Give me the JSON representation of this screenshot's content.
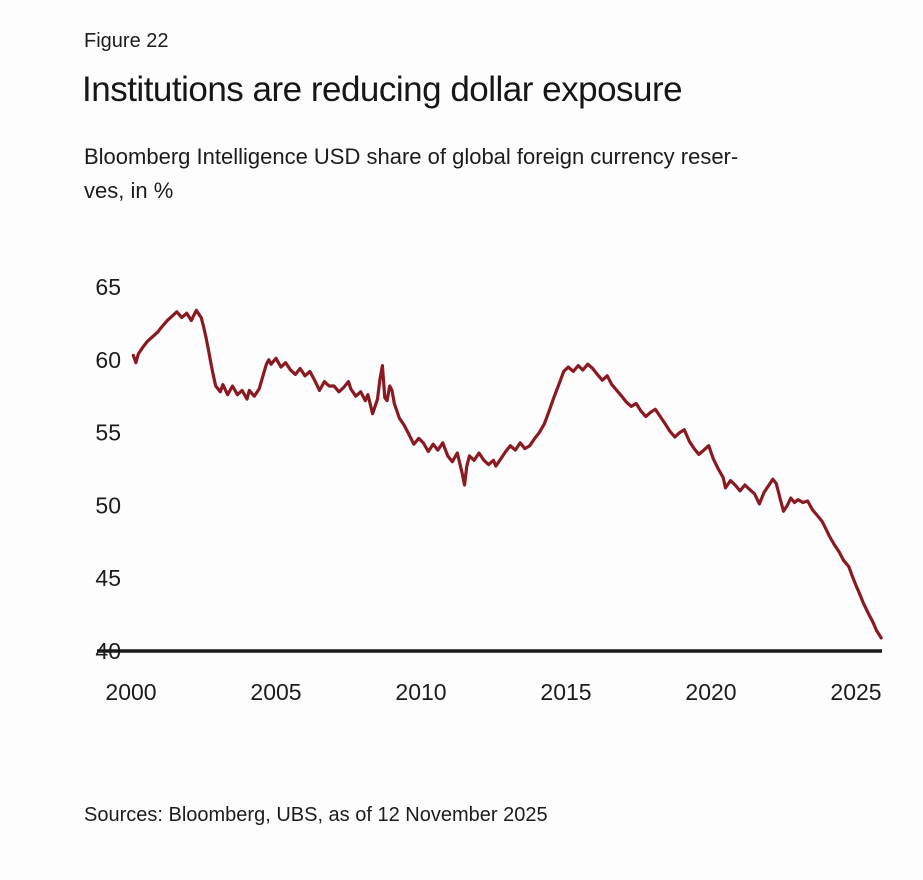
{
  "figure": {
    "label": "Figure 22",
    "title": "Institutions are reducing dollar exposure",
    "subtitle_line1": "Bloomberg Intelligence USD share of global foreign currency reser-",
    "subtitle_line2": "ves, in %",
    "sources": "Sources: Bloomberg, UBS, as of 12 November 2025"
  },
  "colors": {
    "line": "#8a1a22",
    "axis": "#1a1a1a",
    "text": "#1c1c1c",
    "background": "#fdfdfd"
  },
  "chart_data": {
    "type": "line",
    "title": "Institutions are reducing dollar exposure",
    "subtitle": "Bloomberg Intelligence USD share of global foreign currency reserves, in %",
    "xlabel": "",
    "ylabel": "USD share of global foreign currency reserves, %",
    "xlim": [
      1999.9,
      2026.3
    ],
    "ylim": [
      40,
      65
    ],
    "x_ticks": [
      2000,
      2005,
      2010,
      2015,
      2020,
      2025
    ],
    "y_ticks": [
      65,
      60,
      55,
      50,
      45,
      40
    ],
    "grid": false,
    "legend": false,
    "line_color": "#8a1a22",
    "series": [
      {
        "name": "USD share of global FX reserves (%)",
        "points": [
          [
            2000.08,
            60.3
          ],
          [
            2000.17,
            59.8
          ],
          [
            2000.25,
            60.4
          ],
          [
            2000.42,
            60.9
          ],
          [
            2000.58,
            61.3
          ],
          [
            2000.75,
            61.6
          ],
          [
            2000.92,
            61.9
          ],
          [
            2001.08,
            62.3
          ],
          [
            2001.25,
            62.7
          ],
          [
            2001.42,
            63.0
          ],
          [
            2001.58,
            63.3
          ],
          [
            2001.75,
            62.9
          ],
          [
            2001.92,
            63.2
          ],
          [
            2002.08,
            62.7
          ],
          [
            2002.25,
            63.4
          ],
          [
            2002.42,
            62.9
          ],
          [
            2002.5,
            62.3
          ],
          [
            2002.58,
            61.6
          ],
          [
            2002.67,
            60.7
          ],
          [
            2002.75,
            59.8
          ],
          [
            2002.83,
            59.0
          ],
          [
            2002.92,
            58.2
          ],
          [
            2003.08,
            57.8
          ],
          [
            2003.17,
            58.3
          ],
          [
            2003.33,
            57.6
          ],
          [
            2003.5,
            58.2
          ],
          [
            2003.67,
            57.6
          ],
          [
            2003.83,
            57.9
          ],
          [
            2004.0,
            57.3
          ],
          [
            2004.08,
            57.9
          ],
          [
            2004.25,
            57.5
          ],
          [
            2004.42,
            58.0
          ],
          [
            2004.58,
            59.1
          ],
          [
            2004.67,
            59.7
          ],
          [
            2004.75,
            60.0
          ],
          [
            2004.83,
            59.7
          ],
          [
            2005.0,
            60.1
          ],
          [
            2005.17,
            59.5
          ],
          [
            2005.33,
            59.8
          ],
          [
            2005.5,
            59.3
          ],
          [
            2005.67,
            59.0
          ],
          [
            2005.83,
            59.4
          ],
          [
            2006.0,
            58.9
          ],
          [
            2006.17,
            59.2
          ],
          [
            2006.33,
            58.6
          ],
          [
            2006.5,
            57.9
          ],
          [
            2006.67,
            58.5
          ],
          [
            2006.83,
            58.2
          ],
          [
            2007.0,
            58.2
          ],
          [
            2007.17,
            57.8
          ],
          [
            2007.33,
            58.1
          ],
          [
            2007.5,
            58.5
          ],
          [
            2007.58,
            58.0
          ],
          [
            2007.75,
            57.5
          ],
          [
            2007.92,
            57.8
          ],
          [
            2008.08,
            57.2
          ],
          [
            2008.17,
            57.6
          ],
          [
            2008.33,
            56.3
          ],
          [
            2008.5,
            57.3
          ],
          [
            2008.58,
            58.6
          ],
          [
            2008.67,
            59.6
          ],
          [
            2008.75,
            57.4
          ],
          [
            2008.83,
            57.2
          ],
          [
            2008.92,
            58.2
          ],
          [
            2009.0,
            57.9
          ],
          [
            2009.08,
            57.0
          ],
          [
            2009.25,
            56.0
          ],
          [
            2009.42,
            55.5
          ],
          [
            2009.58,
            54.9
          ],
          [
            2009.75,
            54.2
          ],
          [
            2009.92,
            54.6
          ],
          [
            2010.08,
            54.3
          ],
          [
            2010.25,
            53.7
          ],
          [
            2010.42,
            54.2
          ],
          [
            2010.58,
            53.8
          ],
          [
            2010.75,
            54.3
          ],
          [
            2010.92,
            53.4
          ],
          [
            2011.08,
            53.0
          ],
          [
            2011.25,
            53.6
          ],
          [
            2011.42,
            52.2
          ],
          [
            2011.5,
            51.4
          ],
          [
            2011.58,
            52.7
          ],
          [
            2011.67,
            53.4
          ],
          [
            2011.83,
            53.1
          ],
          [
            2012.0,
            53.6
          ],
          [
            2012.17,
            53.1
          ],
          [
            2012.33,
            52.8
          ],
          [
            2012.5,
            53.1
          ],
          [
            2012.58,
            52.7
          ],
          [
            2012.75,
            53.2
          ],
          [
            2012.92,
            53.7
          ],
          [
            2013.08,
            54.1
          ],
          [
            2013.25,
            53.8
          ],
          [
            2013.42,
            54.3
          ],
          [
            2013.58,
            53.9
          ],
          [
            2013.75,
            54.1
          ],
          [
            2013.92,
            54.6
          ],
          [
            2014.08,
            55.0
          ],
          [
            2014.25,
            55.6
          ],
          [
            2014.42,
            56.5
          ],
          [
            2014.58,
            57.4
          ],
          [
            2014.75,
            58.3
          ],
          [
            2014.92,
            59.2
          ],
          [
            2015.08,
            59.5
          ],
          [
            2015.25,
            59.2
          ],
          [
            2015.42,
            59.6
          ],
          [
            2015.58,
            59.3
          ],
          [
            2015.75,
            59.7
          ],
          [
            2015.92,
            59.4
          ],
          [
            2016.08,
            59.0
          ],
          [
            2016.25,
            58.6
          ],
          [
            2016.42,
            58.9
          ],
          [
            2016.58,
            58.3
          ],
          [
            2016.75,
            57.9
          ],
          [
            2016.92,
            57.5
          ],
          [
            2017.08,
            57.1
          ],
          [
            2017.25,
            56.8
          ],
          [
            2017.42,
            57.0
          ],
          [
            2017.58,
            56.5
          ],
          [
            2017.75,
            56.1
          ],
          [
            2017.92,
            56.4
          ],
          [
            2018.08,
            56.6
          ],
          [
            2018.25,
            56.1
          ],
          [
            2018.42,
            55.6
          ],
          [
            2018.58,
            55.1
          ],
          [
            2018.75,
            54.7
          ],
          [
            2018.92,
            55.0
          ],
          [
            2019.08,
            55.2
          ],
          [
            2019.25,
            54.4
          ],
          [
            2019.42,
            53.9
          ],
          [
            2019.58,
            53.5
          ],
          [
            2019.75,
            53.8
          ],
          [
            2019.92,
            54.1
          ],
          [
            2020.08,
            53.2
          ],
          [
            2020.25,
            52.5
          ],
          [
            2020.42,
            51.9
          ],
          [
            2020.5,
            51.2
          ],
          [
            2020.67,
            51.7
          ],
          [
            2020.83,
            51.4
          ],
          [
            2021.0,
            51.0
          ],
          [
            2021.17,
            51.4
          ],
          [
            2021.33,
            51.1
          ],
          [
            2021.5,
            50.8
          ],
          [
            2021.67,
            50.1
          ],
          [
            2021.83,
            50.9
          ],
          [
            2022.0,
            51.4
          ],
          [
            2022.13,
            51.8
          ],
          [
            2022.25,
            51.5
          ],
          [
            2022.38,
            50.5
          ],
          [
            2022.5,
            49.6
          ],
          [
            2022.63,
            50.0
          ],
          [
            2022.75,
            50.5
          ],
          [
            2022.88,
            50.2
          ],
          [
            2023.0,
            50.4
          ],
          [
            2023.17,
            50.2
          ],
          [
            2023.33,
            50.3
          ],
          [
            2023.5,
            49.7
          ],
          [
            2023.67,
            49.3
          ],
          [
            2023.83,
            48.9
          ],
          [
            2023.96,
            48.4
          ],
          [
            2024.08,
            47.9
          ],
          [
            2024.25,
            47.3
          ],
          [
            2024.42,
            46.8
          ],
          [
            2024.58,
            46.2
          ],
          [
            2024.75,
            45.8
          ],
          [
            2024.88,
            45.1
          ],
          [
            2025.0,
            44.5
          ],
          [
            2025.13,
            43.9
          ],
          [
            2025.25,
            43.3
          ],
          [
            2025.42,
            42.6
          ],
          [
            2025.58,
            42.0
          ],
          [
            2025.71,
            41.4
          ],
          [
            2025.87,
            40.9
          ]
        ]
      }
    ]
  }
}
